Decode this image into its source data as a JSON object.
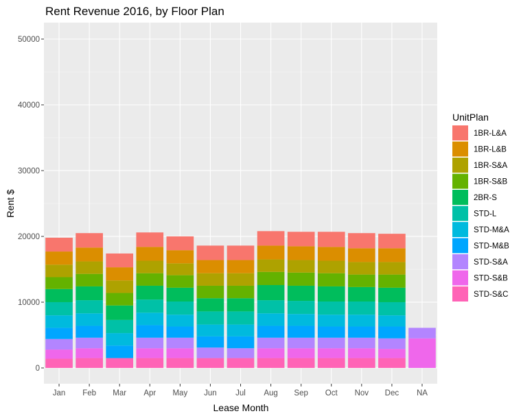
{
  "chart_data": {
    "type": "bar",
    "stacked": true,
    "title": "Rent Revenue 2016, by Floor Plan",
    "xlabel": "Lease Month",
    "ylabel": "Rent $",
    "ylim": [
      -2400,
      52500
    ],
    "yticks": [
      0,
      10000,
      20000,
      30000,
      40000,
      50000
    ],
    "grid": true,
    "legend_position": "right",
    "legend_title": "UnitPlan",
    "categories": [
      "Jan",
      "Feb",
      "Mar",
      "Apr",
      "May",
      "Jun",
      "Jul",
      "Aug",
      "Sep",
      "Oct",
      "Nov",
      "Dec",
      "NA"
    ],
    "series": [
      {
        "name": "1BR-L&A",
        "color": "#F8766D",
        "values": [
          2100,
          2200,
          2100,
          2200,
          2100,
          2200,
          2200,
          2200,
          2200,
          2300,
          2300,
          2200,
          0
        ]
      },
      {
        "name": "1BR-L&B",
        "color": "#DB8E00",
        "values": [
          2000,
          2100,
          2000,
          2100,
          2000,
          2000,
          2000,
          2100,
          2100,
          2100,
          2100,
          2100,
          0
        ]
      },
      {
        "name": "1BR-S&A",
        "color": "#AEA200",
        "values": [
          1900,
          1900,
          1900,
          1900,
          1800,
          1900,
          1900,
          1900,
          1900,
          1900,
          1900,
          1900,
          0
        ]
      },
      {
        "name": "1BR-S&B",
        "color": "#64B200",
        "values": [
          1800,
          1900,
          1900,
          1900,
          1900,
          1900,
          1900,
          2000,
          2000,
          2000,
          1900,
          2000,
          0
        ]
      },
      {
        "name": "2BR-S",
        "color": "#00BD5C",
        "values": [
          2000,
          2100,
          2200,
          2100,
          2100,
          2000,
          2000,
          2300,
          2300,
          2300,
          2200,
          2200,
          0
        ]
      },
      {
        "name": "STD-L",
        "color": "#00C1A7",
        "values": [
          2000,
          2000,
          2000,
          2000,
          2000,
          2000,
          2000,
          2000,
          2000,
          2000,
          2000,
          2000,
          0
        ]
      },
      {
        "name": "STD-M&A",
        "color": "#00BADE",
        "values": [
          1900,
          1900,
          1900,
          1900,
          1800,
          1800,
          1800,
          1900,
          1800,
          1800,
          1800,
          1700,
          0
        ]
      },
      {
        "name": "STD-M&B",
        "color": "#00A6FF",
        "values": [
          1700,
          1800,
          1900,
          1900,
          1700,
          1700,
          1800,
          1800,
          1800,
          1700,
          1700,
          1800,
          0
        ]
      },
      {
        "name": "STD-S&A",
        "color": "#B385FF",
        "values": [
          1600,
          1600,
          0,
          1600,
          1600,
          1600,
          1500,
          1600,
          1600,
          1600,
          1600,
          1600,
          1600
        ]
      },
      {
        "name": "STD-S&B",
        "color": "#EF67EB",
        "values": [
          1400,
          1500,
          0,
          1500,
          1500,
          0,
          0,
          1500,
          1500,
          1500,
          1500,
          1400,
          4500
        ]
      },
      {
        "name": "STD-S&C",
        "color": "#FF63B6",
        "values": [
          1400,
          1500,
          1500,
          1500,
          1500,
          1500,
          1500,
          1500,
          1500,
          1500,
          1500,
          1500,
          0
        ]
      }
    ]
  }
}
